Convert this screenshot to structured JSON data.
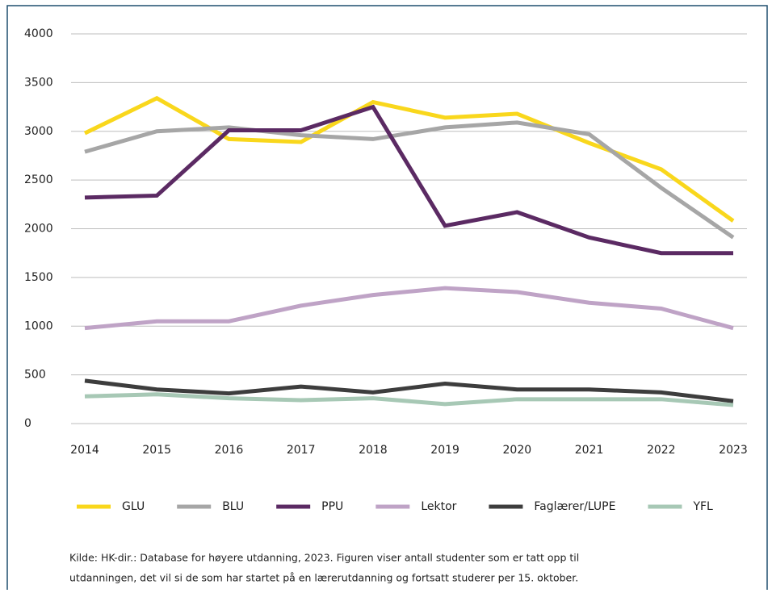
{
  "chart_data": {
    "type": "line",
    "categories": [
      "2014",
      "2015",
      "2016",
      "2017",
      "2018",
      "2019",
      "2020",
      "2021",
      "2022",
      "2023"
    ],
    "series": [
      {
        "name": "GLU",
        "color": "#f9d71c",
        "values": [
          2980,
          3340,
          2920,
          2890,
          3300,
          3140,
          3180,
          2880,
          2610,
          2080
        ]
      },
      {
        "name": "BLU",
        "color": "#a6a6a6",
        "values": [
          2790,
          3000,
          3040,
          2960,
          2920,
          3040,
          3090,
          2970,
          2420,
          1910
        ]
      },
      {
        "name": "PPU",
        "color": "#5b2a63",
        "values": [
          2320,
          2340,
          3010,
          3010,
          3250,
          2030,
          2170,
          1910,
          1750,
          1750
        ]
      },
      {
        "name": "Lektor",
        "color": "#bfa3c6",
        "values": [
          980,
          1050,
          1050,
          1210,
          1320,
          1390,
          1350,
          1240,
          1180,
          980
        ]
      },
      {
        "name": "Faglærer/LUPE",
        "color": "#3d3d3d",
        "values": [
          440,
          350,
          310,
          380,
          320,
          410,
          350,
          350,
          320,
          230
        ]
      },
      {
        "name": "YFL",
        "color": "#a7c8b5",
        "values": [
          280,
          300,
          260,
          240,
          260,
          200,
          250,
          250,
          250,
          190
        ]
      }
    ],
    "ylim": [
      0,
      4000
    ],
    "yticks": [
      0,
      500,
      1000,
      1500,
      2000,
      2500,
      3000,
      3500,
      4000
    ],
    "grid": true,
    "source": [
      "Kilde: HK-dir.: Database for høyere utdanning, 2023. Figuren viser antall studenter som er tatt opp til",
      "utdanningen, det vil si de som har startet på en lærerutdanning og fortsatt studerer per 15. oktober."
    ]
  }
}
